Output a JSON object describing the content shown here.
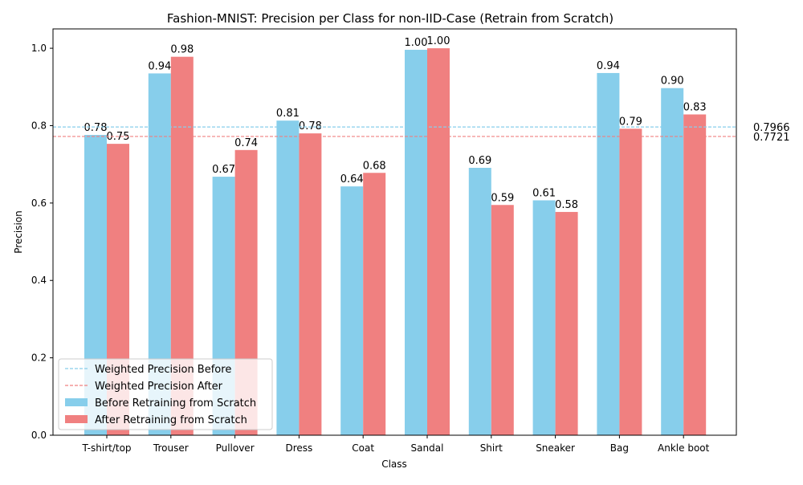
{
  "chart_data": {
    "type": "bar",
    "title": "Fashion-MNIST: Precision per Class for non-IID-Case (Retrain from Scratch)",
    "xlabel": "Class",
    "ylabel": "Precision",
    "ylim": [
      0,
      1.05
    ],
    "yticks": [
      0.0,
      0.2,
      0.4,
      0.6,
      0.8,
      1.0
    ],
    "ytick_labels": [
      "0.0",
      "0.2",
      "0.4",
      "0.6",
      "0.8",
      "1.0"
    ],
    "grid": false,
    "legend_position": "lower-left",
    "categories": [
      "T-shirt/top",
      "Trouser",
      "Pullover",
      "Dress",
      "Coat",
      "Sandal",
      "Shirt",
      "Sneaker",
      "Bag",
      "Ankle boot"
    ],
    "series": [
      {
        "name": "Before Retraining from Scratch",
        "color": "#87ceeb",
        "values": [
          0.776,
          0.935,
          0.668,
          0.813,
          0.643,
          0.996,
          0.691,
          0.607,
          0.936,
          0.897
        ],
        "labels": [
          "0.78",
          "0.94",
          "0.67",
          "0.81",
          "0.64",
          "1.00",
          "0.69",
          "0.61",
          "0.94",
          "0.90"
        ]
      },
      {
        "name": "After Retraining from Scratch",
        "color": "#f08080",
        "values": [
          0.753,
          0.978,
          0.737,
          0.78,
          0.678,
          1.0,
          0.595,
          0.577,
          0.792,
          0.829
        ],
        "labels": [
          "0.75",
          "0.98",
          "0.74",
          "0.78",
          "0.68",
          "1.00",
          "0.59",
          "0.58",
          "0.79",
          "0.83"
        ]
      }
    ],
    "reference_lines": [
      {
        "name": "Weighted Precision Before",
        "value": 0.7966,
        "label": "0.7966",
        "color": "#87ceeb"
      },
      {
        "name": "Weighted Precision After",
        "value": 0.7721,
        "label": "0.7721",
        "color": "#f08080"
      }
    ]
  }
}
